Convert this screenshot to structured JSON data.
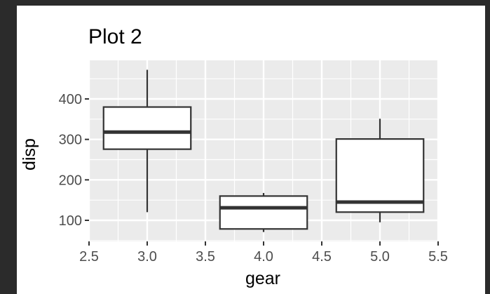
{
  "chart_data": {
    "type": "boxplot",
    "title": "Plot 2",
    "xlabel": "gear",
    "ylabel": "disp",
    "xlim": [
      2.5,
      5.5
    ],
    "ylim": [
      50,
      490
    ],
    "xticks": [
      2.5,
      3.0,
      3.5,
      4.0,
      4.5,
      5.0,
      5.5
    ],
    "xtick_labels": [
      "2.5",
      "3.0",
      "3.5",
      "4.0",
      "4.5",
      "5.0",
      "5.5"
    ],
    "yticks": [
      100,
      200,
      300,
      400
    ],
    "ytick_labels": [
      "100",
      "200",
      "300",
      "400"
    ],
    "grid": true,
    "legend": "none",
    "boxes": [
      {
        "x": 3,
        "whisker_low": 120.1,
        "q1": 275.8,
        "median": 318,
        "q3": 380,
        "whisker_high": 472
      },
      {
        "x": 4,
        "whisker_low": 71.1,
        "q1": 78.7,
        "median": 130.9,
        "q3": 160,
        "whisker_high": 167.6
      },
      {
        "x": 5,
        "whisker_low": 95.1,
        "q1": 120.3,
        "median": 145,
        "q3": 301,
        "whisker_high": 351
      }
    ],
    "colors": {
      "panel": "#ebebeb",
      "grid": "#ffffff",
      "box_stroke": "#333333",
      "box_fill": "#ffffff",
      "page": "#2b2b2b"
    }
  }
}
